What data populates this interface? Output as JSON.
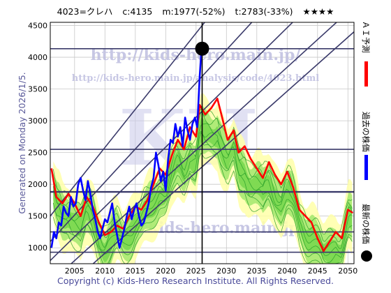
{
  "header": {
    "code_name": "4023=クレハ",
    "close": "c:4135",
    "min": "m:1977(-52%)",
    "target": "t:2783(-33%)",
    "stars": "★★★★"
  },
  "side_text": "Generated on Monday 2026/1/5.",
  "watermarks": {
    "url1": "http://kids-hero.main.jp/",
    "url2": "http://kids-hero.main.jp/analysis/code/4023.html",
    "email": "info@kids-hero.main.jp",
    "big": "KH"
  },
  "copyright": "Copyright (c) Kids-Hero Research Institute. All Rights Reserved.",
  "legend": {
    "ai": "ＡＩ予測",
    "past": "過去の株価",
    "latest": "最新の株価"
  },
  "colors": {
    "ai": "#ff0000",
    "past": "#0000ff",
    "latest": "#000000",
    "band_yellow": "#ffffa8",
    "band_green": "#8ee35e",
    "green_line": "#2aa02a",
    "trend": "#3a3a6a",
    "grid": "#c8c8c8"
  },
  "chart_data": {
    "type": "line",
    "xlim": [
      2001,
      2051
    ],
    "ylim": [
      750,
      4550
    ],
    "x_ticks": [
      2005,
      2010,
      2015,
      2020,
      2025,
      2030,
      2035,
      2040,
      2045,
      2050
    ],
    "y_ticks": [
      1000,
      1500,
      2000,
      2500,
      3000,
      3500,
      4000,
      4500
    ],
    "latest_point": {
      "x": 2026.0,
      "y": 4135
    },
    "horizontal_levels": [
      4135,
      2550,
      1880,
      1250,
      930
    ],
    "vertical_line_x": 2026.0,
    "trend_lines": [
      [
        [
          2001,
          1500
        ],
        [
          2051,
          7500
        ]
      ],
      [
        [
          2001,
          1100
        ],
        [
          2051,
          6300
        ]
      ],
      [
        [
          2001,
          800
        ],
        [
          2051,
          5500
        ]
      ],
      [
        [
          2001,
          450
        ],
        [
          2051,
          4800
        ]
      ],
      [
        [
          2001,
          150
        ],
        [
          2051,
          4400
        ]
      ]
    ],
    "series": [
      {
        "name": "過去の株価",
        "x": [
          2001.2,
          2001.6,
          2002.0,
          2002.4,
          2002.8,
          2003.2,
          2003.6,
          2004.0,
          2004.4,
          2004.8,
          2005.2,
          2005.6,
          2006.0,
          2006.4,
          2006.8,
          2007.2,
          2007.6,
          2008.0,
          2008.4,
          2008.8,
          2009.2,
          2009.6,
          2010.0,
          2010.4,
          2010.8,
          2011.2,
          2011.6,
          2012.0,
          2012.4,
          2012.8,
          2013.2,
          2013.6,
          2014.0,
          2014.4,
          2014.8,
          2015.2,
          2015.6,
          2016.0,
          2016.4,
          2016.8,
          2017.2,
          2017.6,
          2018.0,
          2018.4,
          2018.8,
          2019.2,
          2019.6,
          2020.0,
          2020.4,
          2020.8,
          2021.2,
          2021.6,
          2022.0,
          2022.4,
          2022.8,
          2023.2,
          2023.6,
          2024.0,
          2024.4,
          2024.8,
          2025.2,
          2025.6,
          2025.9
        ],
        "values": [
          1000,
          1250,
          1150,
          1400,
          1350,
          1650,
          1550,
          1500,
          1800,
          1650,
          1700,
          2000,
          2100,
          1900,
          1750,
          2050,
          1850,
          1600,
          1450,
          1250,
          1150,
          1300,
          1450,
          1400,
          1550,
          1700,
          1400,
          1200,
          1000,
          1150,
          1300,
          1500,
          1650,
          1450,
          1600,
          1700,
          1500,
          1350,
          1400,
          1550,
          1700,
          1950,
          2100,
          2500,
          2300,
          2050,
          2200,
          1900,
          2400,
          2700,
          2650,
          2950,
          2750,
          2900,
          2600,
          3050,
          2850,
          2700,
          2950,
          3050,
          2900,
          3700,
          4135
        ]
      },
      {
        "name": "ＡＩ予測",
        "x": [
          2001.2,
          2002.0,
          2003.0,
          2004.0,
          2005.0,
          2006.0,
          2007.0,
          2008.0,
          2009.0,
          2010.0,
          2011.0,
          2012.0,
          2013.0,
          2014.0,
          2015.0,
          2016.0,
          2017.0,
          2018.0,
          2019.0,
          2020.0,
          2021.0,
          2022.0,
          2023.0,
          2024.0,
          2025.0,
          2025.6,
          2026.5,
          2027.5,
          2028.5,
          2029.3,
          2030.2,
          2031.2,
          2032.0,
          2033.0,
          2034.0,
          2035.0,
          2036.0,
          2037.0,
          2038.0,
          2039.0,
          2040.0,
          2041.0,
          2042.0,
          2043.0,
          2044.0,
          2045.0,
          2046.0,
          2047.0,
          2048.0,
          2049.0,
          2050.0,
          2050.8
        ],
        "values": [
          2250,
          1800,
          1700,
          1850,
          1700,
          1500,
          1800,
          1650,
          1400,
          1200,
          1250,
          1350,
          1300,
          1500,
          1650,
          1600,
          1750,
          2000,
          2250,
          2150,
          2450,
          2700,
          2550,
          2900,
          2750,
          3250,
          3100,
          3200,
          3350,
          3050,
          2700,
          2850,
          2500,
          2600,
          2400,
          2250,
          2100,
          2350,
          2150,
          2000,
          2200,
          1950,
          1600,
          1500,
          1400,
          1150,
          950,
          1100,
          1250,
          1150,
          1600,
          1550
        ]
      }
    ]
  }
}
